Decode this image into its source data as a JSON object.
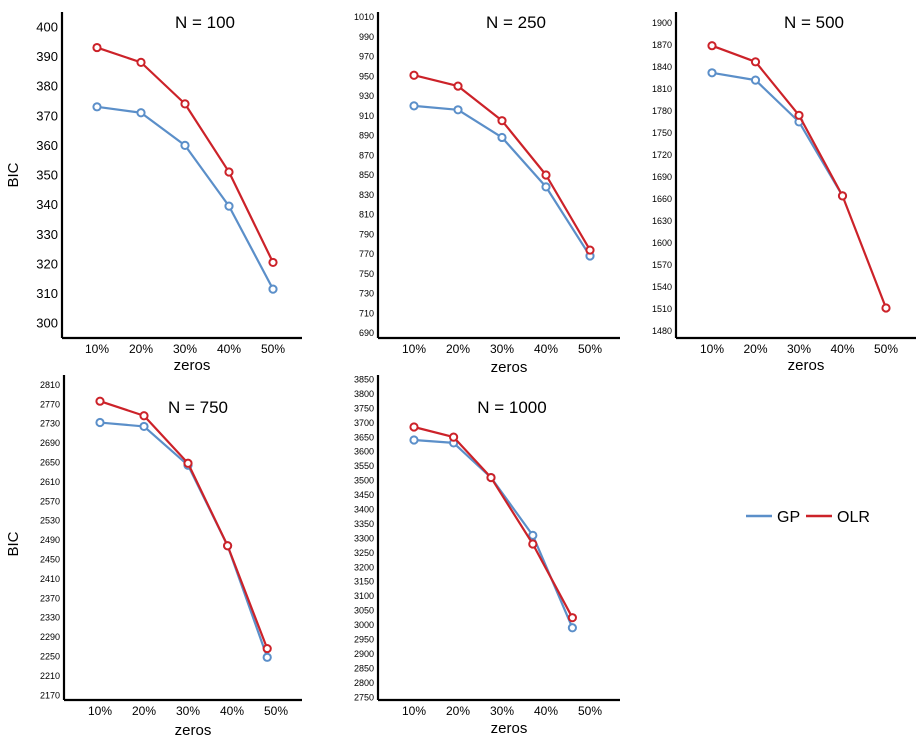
{
  "colors": {
    "GP": "#5B8FC9",
    "OLR": "#CC2229"
  },
  "legend": [
    {
      "key": "GP",
      "label": "GP"
    },
    {
      "key": "OLR",
      "label": "OLR"
    }
  ],
  "chart_data": [
    {
      "type": "line",
      "title": "N = 100",
      "xlabel": "zeros",
      "ylabel": "BIC",
      "categories": [
        "10%",
        "20%",
        "30%",
        "40%",
        "50%"
      ],
      "ylim": [
        295,
        405
      ],
      "yticks": [
        300,
        310,
        320,
        330,
        340,
        350,
        360,
        370,
        380,
        390,
        400
      ],
      "series": [
        {
          "name": "GP",
          "points": [
            [
              1,
              373
            ],
            [
              2,
              371
            ],
            [
              3,
              360
            ],
            [
              4,
              339.5
            ],
            [
              5,
              311.5
            ]
          ]
        },
        {
          "name": "OLR",
          "points": [
            [
              1,
              393
            ],
            [
              2,
              388
            ],
            [
              3,
              374
            ],
            [
              4,
              351
            ],
            [
              5,
              320.5
            ]
          ]
        }
      ]
    },
    {
      "type": "line",
      "title": "N = 250",
      "xlabel": "zeros",
      "ylabel": "",
      "categories": [
        "10%",
        "20%",
        "30%",
        "40%",
        "50%"
      ],
      "ylim": [
        685,
        1015
      ],
      "yticks": [
        690,
        710,
        730,
        750,
        770,
        790,
        810,
        830,
        850,
        870,
        890,
        910,
        930,
        950,
        970,
        990,
        1010
      ],
      "series": [
        {
          "name": "GP",
          "points": [
            [
              1,
              920
            ],
            [
              2,
              916
            ],
            [
              3,
              888
            ],
            [
              4,
              838
            ],
            [
              5,
              768
            ]
          ]
        },
        {
          "name": "OLR",
          "points": [
            [
              1,
              951
            ],
            [
              2,
              940
            ],
            [
              3,
              905
            ],
            [
              4,
              850
            ],
            [
              5,
              774
            ]
          ]
        }
      ]
    },
    {
      "type": "line",
      "title": "N = 500",
      "xlabel": "zeros",
      "ylabel": "",
      "categories": [
        "10%",
        "20%",
        "30%",
        "40%",
        "50%"
      ],
      "ylim": [
        1470,
        1915
      ],
      "yticks": [
        1480,
        1510,
        1540,
        1570,
        1600,
        1630,
        1660,
        1690,
        1720,
        1750,
        1780,
        1810,
        1840,
        1870,
        1900
      ],
      "series": [
        {
          "name": "GP",
          "points": [
            [
              1,
              1832
            ],
            [
              2,
              1822
            ],
            [
              3,
              1765
            ],
            [
              4,
              1664
            ]
          ]
        },
        {
          "name": "OLR",
          "points": [
            [
              1,
              1869
            ],
            [
              2,
              1847
            ],
            [
              3,
              1774
            ],
            [
              4,
              1664
            ],
            [
              5,
              1511
            ]
          ]
        }
      ]
    },
    {
      "type": "line",
      "title": "N = 750",
      "xlabel": "zeros",
      "ylabel": "BIC",
      "categories": [
        "10%",
        "20%",
        "30%",
        "40%",
        "50%"
      ],
      "ylim": [
        2160,
        2830
      ],
      "yticks": [
        2170,
        2210,
        2250,
        2290,
        2330,
        2370,
        2410,
        2450,
        2490,
        2530,
        2570,
        2610,
        2650,
        2690,
        2730,
        2770,
        2810
      ],
      "series": [
        {
          "name": "GP",
          "points": [
            [
              1,
              2732
            ],
            [
              2,
              2724
            ],
            [
              3,
              2644
            ],
            [
              3.9,
              2478
            ],
            [
              4.8,
              2248
            ]
          ]
        },
        {
          "name": "OLR",
          "points": [
            [
              1,
              2776
            ],
            [
              2,
              2746
            ],
            [
              3,
              2648
            ],
            [
              3.9,
              2478
            ],
            [
              4.8,
              2266
            ]
          ]
        }
      ]
    },
    {
      "type": "line",
      "title": "N = 1000",
      "xlabel": "zeros",
      "ylabel": "",
      "categories": [
        "10%",
        "20%",
        "30%",
        "40%",
        "50%"
      ],
      "ylim": [
        2740,
        3865
      ],
      "yticks": [
        2750,
        2800,
        2850,
        2900,
        2950,
        3000,
        3050,
        3100,
        3150,
        3200,
        3250,
        3300,
        3350,
        3400,
        3450,
        3500,
        3550,
        3600,
        3650,
        3700,
        3750,
        3800,
        3850
      ],
      "series": [
        {
          "name": "GP",
          "points": [
            [
              1,
              3640
            ],
            [
              1.9,
              3630
            ],
            [
              2.75,
              3510
            ],
            [
              3.7,
              3310
            ],
            [
              4.6,
              2990
            ]
          ]
        },
        {
          "name": "OLR",
          "points": [
            [
              1,
              3685
            ],
            [
              1.9,
              3650
            ],
            [
              2.75,
              3510
            ],
            [
              3.7,
              3280
            ],
            [
              4.6,
              3025
            ]
          ]
        }
      ]
    }
  ]
}
